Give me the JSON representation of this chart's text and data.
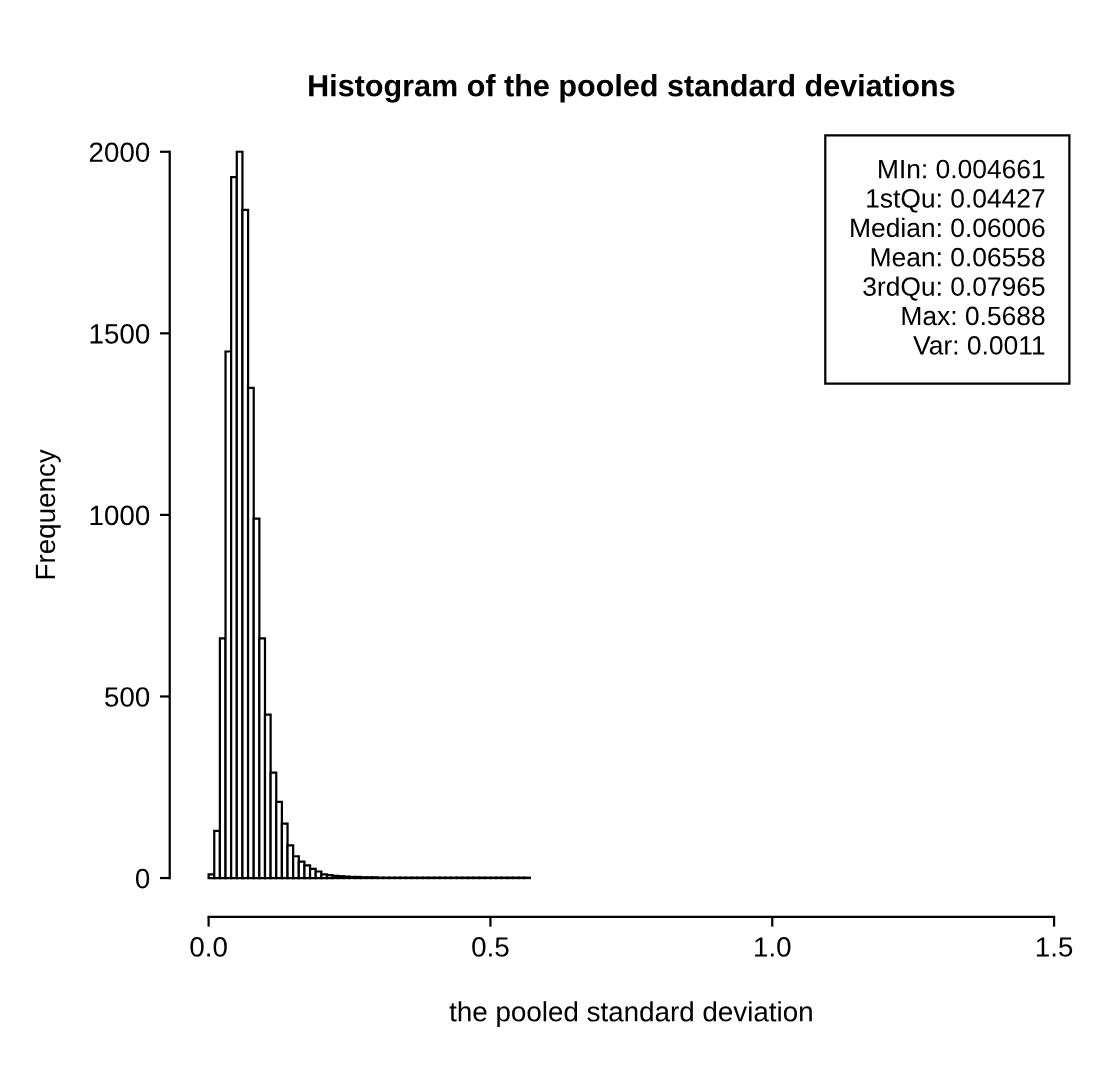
{
  "chart_data": {
    "type": "histogram",
    "title": "Histogram of the pooled standard deviations",
    "xlabel": "the pooled standard deviation",
    "ylabel": "Frequency",
    "bins": [
      0,
      0.01,
      0.02,
      0.03,
      0.04,
      0.05,
      0.06,
      0.07,
      0.08,
      0.09,
      0.1,
      0.11,
      0.12,
      0.13,
      0.14,
      0.15,
      0.16,
      0.17,
      0.18,
      0.19,
      0.2,
      0.21,
      0.22,
      0.23,
      0.24,
      0.25,
      0.26,
      0.27,
      0.28,
      0.29,
      0.3,
      0.31,
      0.32,
      0.33,
      0.34,
      0.35,
      0.36,
      0.37,
      0.38,
      0.39,
      0.4,
      0.41,
      0.42,
      0.43,
      0.44,
      0.45,
      0.46,
      0.47,
      0.48,
      0.49,
      0.5,
      0.51,
      0.52,
      0.53,
      0.54,
      0.55,
      0.56,
      0.57
    ],
    "values": [
      10,
      130,
      660,
      1450,
      1930,
      2000,
      1840,
      1350,
      990,
      660,
      450,
      290,
      210,
      150,
      90,
      60,
      45,
      35,
      25,
      18,
      10,
      8,
      6,
      5,
      4,
      3,
      3,
      2,
      2,
      2,
      1,
      1,
      1,
      1,
      1,
      1,
      1,
      1,
      1,
      1,
      1,
      1,
      1,
      1,
      1,
      1,
      1,
      1,
      1,
      1,
      1,
      1,
      1,
      1,
      1,
      1,
      1
    ],
    "color": "#ffffff",
    "xlim": [
      0,
      1.5
    ],
    "ylim": [
      0,
      2000
    ],
    "xticks": [
      {
        "value": 0,
        "label": "0.0"
      },
      0.5,
      {
        "value": 1,
        "label": "1.0"
      },
      1.5
    ],
    "yticks": [
      0,
      500,
      1000,
      1500,
      2000
    ],
    "annotations": [
      "MIn: 0.004661\n1stQu: 0.04427\nMedian: 0.06006\nMean: 0.06558\n3rdQu: 0.07965\nMax: 0.5688\nVar: 0.0011"
    ],
    "grid": false
  }
}
